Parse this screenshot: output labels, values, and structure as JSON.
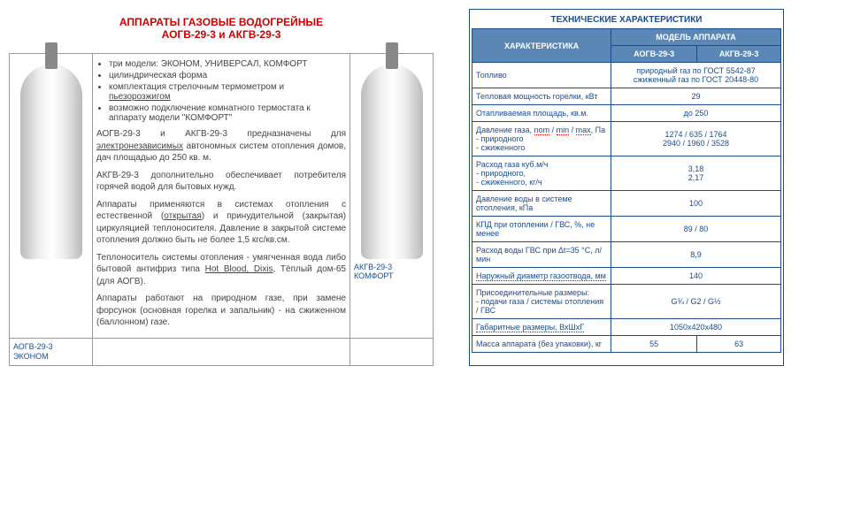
{
  "left": {
    "title": "АППАРАТЫ ГАЗОВЫЕ ВОДОГРЕЙНЫЕ",
    "subtitle": "АОГВ-29-3 и АКГВ-29-3",
    "bullets": [
      "три модели: ЭКОНОМ, УНИВЕРСАЛ, КОМФОРТ",
      "цилиндрическая форма",
      "комплектация стрелочным термометром и пьезорозжигом",
      "возможно подключение комнатного термостата к аппарату модели \"КОМФОРТ\""
    ],
    "p1a": "АОГВ-29-3 и АКГВ-29-3 предназначены для ",
    "p1u": "электронезависимых",
    "p1b": " автономных систем отопления домов, дач площадью до 250 кв. м.",
    "p2": "АКГВ-29-3 дополнительно обеспечивает потребителя горячей водой для бытовых нужд.",
    "p3a": "Аппараты применяются в системах отопления с естественной (",
    "p3u1": "открытая",
    "p3b": ") и принудительной (закрытая) циркуляцией теплоносителя. Давление в закрытой системе отопления должно быть не более 1,5 кгс/кв.см.",
    "p4a": "Теплоноситель системы отопления - умягченная вода либо бытовой антифриз типа ",
    "p4u": "Hot Blood, Dixis",
    "p4b": ", Тёплый дом-65 (для АОГВ).",
    "p5": "Аппараты работают на природном газе, при замене форсунок (основная горелка и запальник) - на сжиженном (баллонном) газе.",
    "caption_left": "АОГВ-29-3 ЭКОНОМ",
    "caption_right": "АКГВ-29-3 КОМФОРТ"
  },
  "spec": {
    "title": "ТЕХНИЧЕСКИЕ ХАРАКТЕРИСТИКИ",
    "h_char": "ХАРАКТЕРИСТИКА",
    "h_model": "МОДЕЛЬ АППАРАТА",
    "h_m1": "АОГВ-29-3",
    "h_m2": "АКГВ-29-3",
    "rows": [
      {
        "label": "Топливо",
        "val": "природный газ по ГОСТ 5542-87\nсжиженный газ по ГОСТ 20448-80",
        "span": 2
      },
      {
        "label": "Тепловая мощность горелки, кВт",
        "val": "29",
        "span": 2
      },
      {
        "label": "Отапливаемая площадь, кв.м.",
        "val": "до 250",
        "span": 2
      },
      {
        "label": "Давление газа, nom / min / max, Па\n- природного\n- сжиженного",
        "val": "1274 / 635 / 1764\n2940 / 1960 / 3528",
        "span": 2,
        "u": true
      },
      {
        "label": "Расход газа куб.м/ч\n- природного,\n- сжиженного, кг/ч",
        "val": "3,18\n2,17",
        "span": 2
      },
      {
        "label": "Давление воды в системе отопления, кПа",
        "val": "100",
        "span": 2
      },
      {
        "label": "КПД при отоплении / ГВС, %, не менее",
        "val": "89 / 80",
        "span": 2
      },
      {
        "label": "Расход воды ГВС при Δt=35 °C, л/мин",
        "val": "8,9",
        "span": 2
      },
      {
        "label": "Наружный диаметр газоотвода, мм",
        "val": "140",
        "span": 2,
        "lu": true
      },
      {
        "label": "Присоединительные размеры:\n- подачи газа / системы отопления / ГВС",
        "val": "G¾ / G2 / G½",
        "span": 2
      },
      {
        "label": "Габаритные размеры, ВхШхГ",
        "val": "1050х420х480",
        "span": 2,
        "lu": true
      },
      {
        "label": "Масса аппарата (без упаковки), кг",
        "v1": "55",
        "v2": "63",
        "span": 1
      }
    ]
  },
  "colors": {
    "accent": "#1a4d8a",
    "header_bg": "#5b87b6",
    "title_red": "#c00"
  }
}
